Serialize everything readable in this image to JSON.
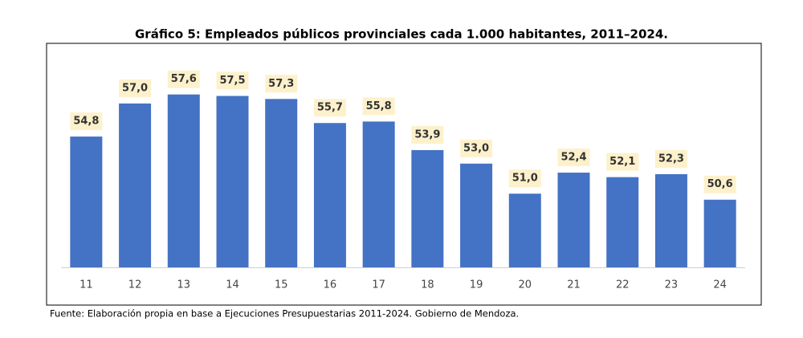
{
  "chart_data": {
    "type": "bar",
    "title": "Gráfico 5: Empleados públicos provinciales cada 1.000 habitantes, 2011–2024.",
    "source": "Fuente: Elaboración propia en base a Ejecuciones Presupuestarias 2011-2024. Gobierno de Mendoza.",
    "categories": [
      "11",
      "12",
      "13",
      "14",
      "15",
      "16",
      "17",
      "18",
      "19",
      "20",
      "21",
      "22",
      "23",
      "24"
    ],
    "values": [
      54.8,
      57.0,
      57.6,
      57.5,
      57.3,
      55.7,
      55.8,
      53.9,
      53.0,
      51.0,
      52.4,
      52.1,
      52.3,
      50.6
    ],
    "value_labels": [
      "54,8",
      "57,0",
      "57,6",
      "57,5",
      "57,3",
      "55,7",
      "55,8",
      "53,9",
      "53,0",
      "51,0",
      "52,4",
      "52,1",
      "52,3",
      "50,6"
    ],
    "color": "#4472c4",
    "ylim": [
      46.1,
      61
    ]
  }
}
